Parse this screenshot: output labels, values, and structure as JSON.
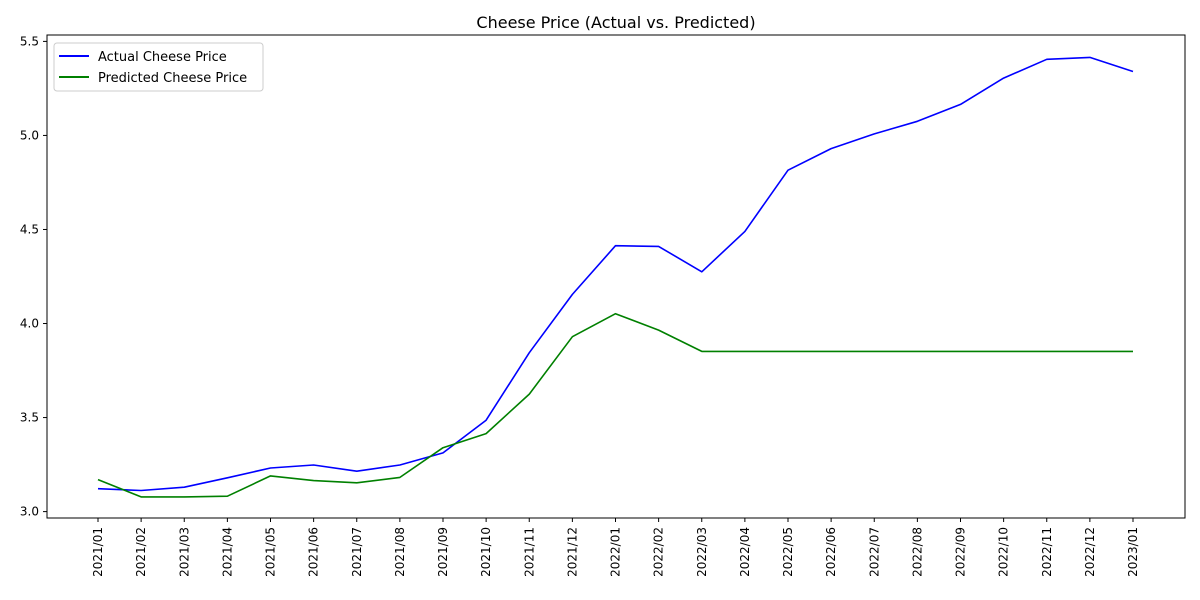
{
  "chart_data": {
    "type": "line",
    "title": "Cheese Price (Actual vs. Predicted)",
    "xlabel": "",
    "ylabel": "",
    "categories": [
      "2021/01",
      "2021/02",
      "2021/03",
      "2021/04",
      "2021/05",
      "2021/06",
      "2021/07",
      "2021/08",
      "2021/09",
      "2021/10",
      "2021/11",
      "2021/12",
      "2022/01",
      "2022/02",
      "2022/03",
      "2022/04",
      "2022/05",
      "2022/06",
      "2022/07",
      "2022/08",
      "2022/09",
      "2022/10",
      "2022/11",
      "2022/12",
      "2023/01"
    ],
    "ylim": [
      2.966,
      5.534
    ],
    "yticks": [
      "3.0",
      "3.5",
      "4.0",
      "4.5",
      "5.0",
      "5.5"
    ],
    "grid": false,
    "legend_position": "upper-left",
    "series": [
      {
        "name": "Actual Cheese Price",
        "color": "#0000ff",
        "values": [
          3.122,
          3.112,
          3.13,
          3.18,
          3.232,
          3.248,
          3.215,
          3.248,
          3.312,
          3.486,
          3.845,
          4.155,
          4.414,
          4.41,
          4.275,
          4.49,
          4.815,
          4.93,
          5.008,
          5.075,
          5.165,
          5.305,
          5.405,
          5.415,
          5.34
        ]
      },
      {
        "name": "Predicted Cheese Price",
        "color": "#008000",
        "values": [
          3.17,
          3.078,
          3.078,
          3.082,
          3.19,
          3.165,
          3.153,
          3.182,
          3.34,
          3.415,
          3.625,
          3.93,
          4.052,
          3.965,
          3.852,
          3.852,
          3.852,
          3.852,
          3.852,
          3.852,
          3.852,
          3.852,
          3.852,
          3.852,
          3.852
        ]
      }
    ]
  }
}
